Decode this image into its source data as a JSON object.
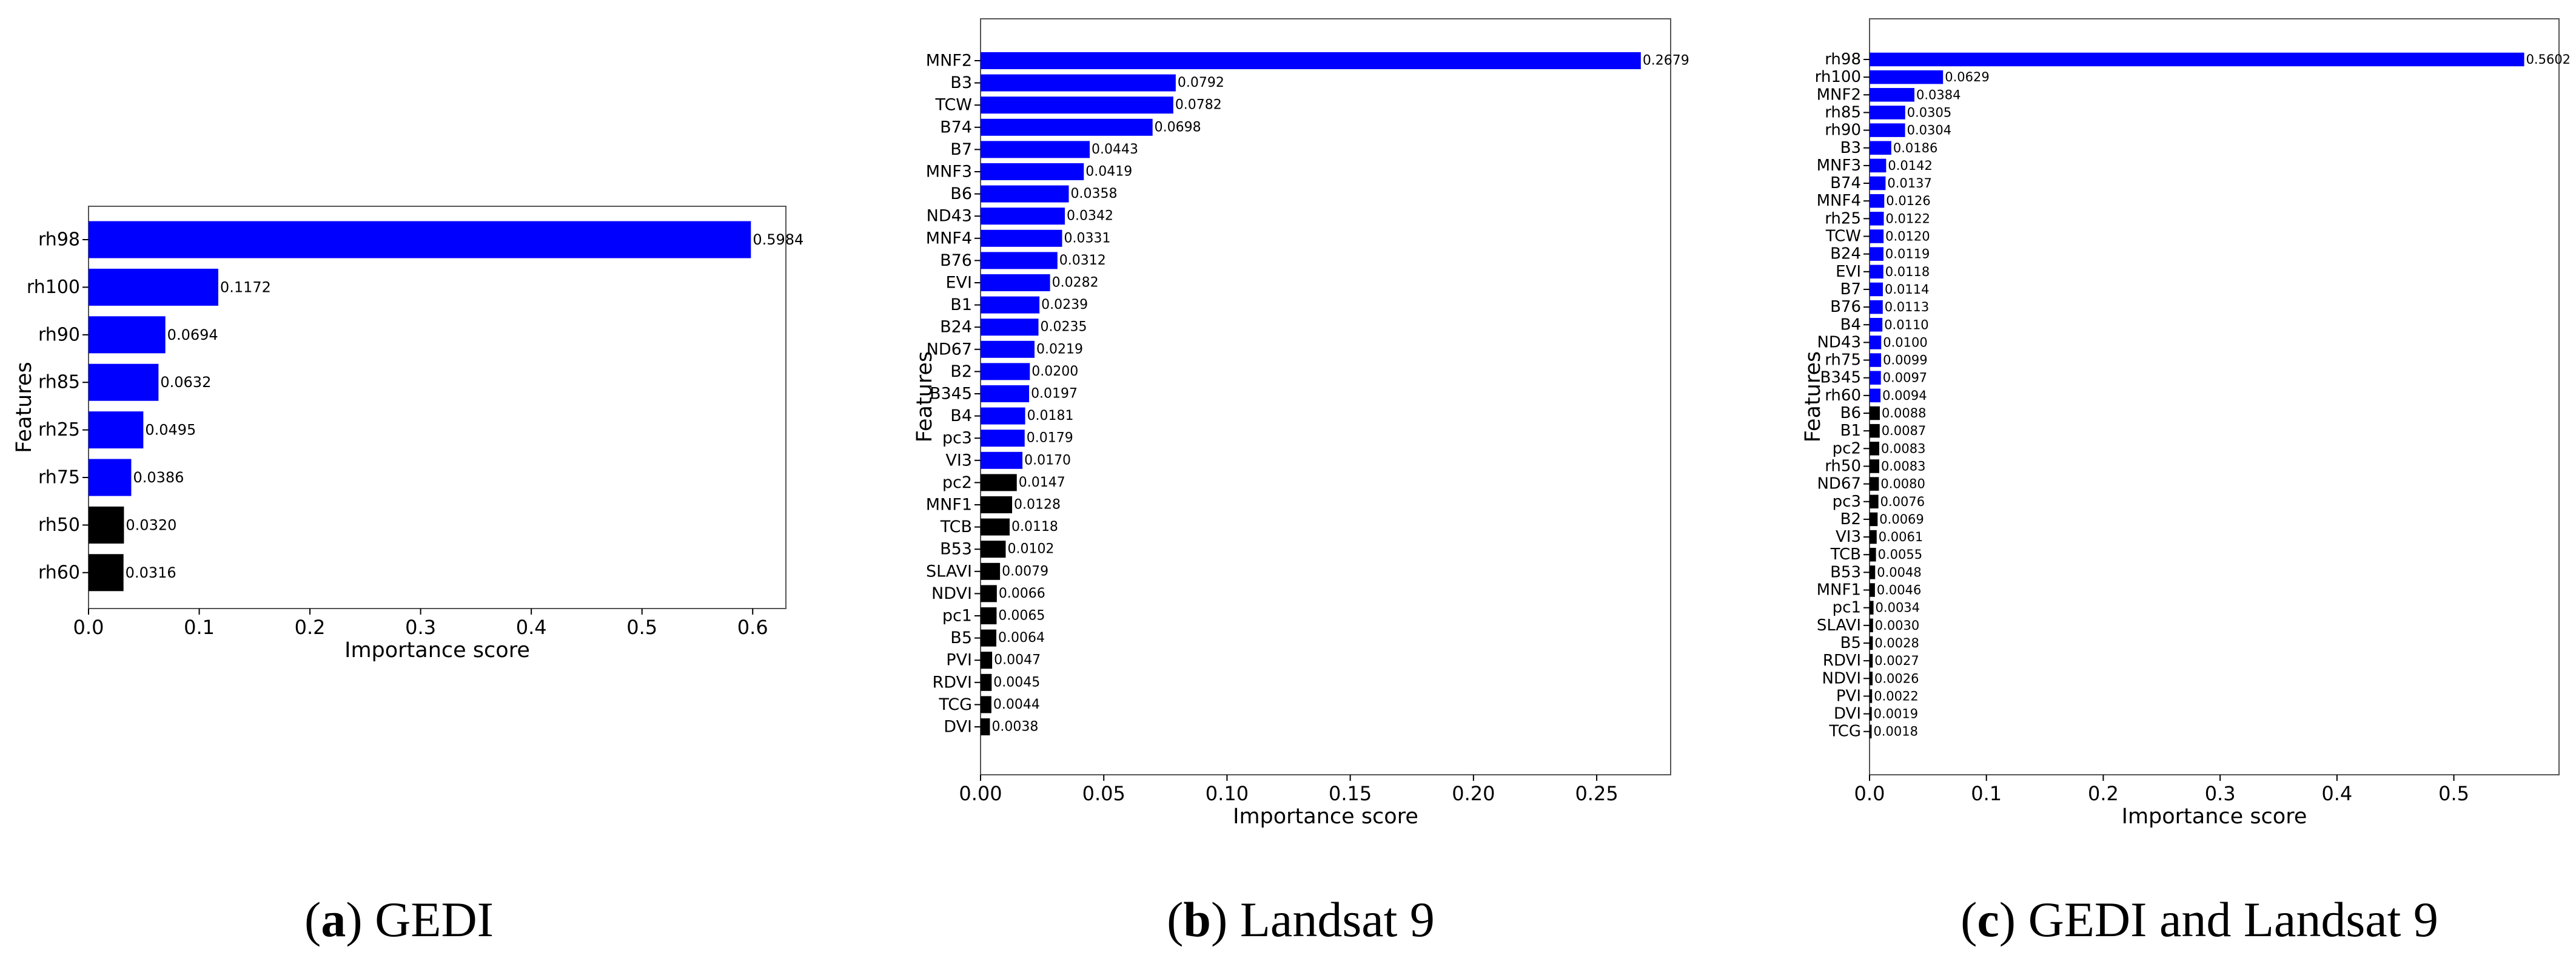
{
  "chart_data": [
    {
      "type": "bar",
      "orientation": "horizontal",
      "caption_letter": "a",
      "caption_text": "GEDI",
      "xlabel": "Importance score",
      "ylabel": "Features",
      "xlim": [
        0,
        0.63
      ],
      "xticks": [
        0.0,
        0.1,
        0.2,
        0.3,
        0.4,
        0.5,
        0.6
      ],
      "xtick_labels": [
        "0.0",
        "0.1",
        "0.2",
        "0.3",
        "0.4",
        "0.5",
        "0.6"
      ],
      "categories": [
        "rh98",
        "rh100",
        "rh90",
        "rh85",
        "rh25",
        "rh75",
        "rh50",
        "rh60"
      ],
      "values": [
        0.5984,
        0.1172,
        0.0694,
        0.0632,
        0.0495,
        0.0386,
        0.032,
        0.0316
      ],
      "value_labels": [
        "0.5984",
        "0.1172",
        "0.0694",
        "0.0632",
        "0.0495",
        "0.0386",
        "0.0320",
        "0.0316"
      ],
      "selected_count": 6,
      "colors": {
        "selected": "#0000ff",
        "other": "#000000"
      },
      "grid": false
    },
    {
      "type": "bar",
      "orientation": "horizontal",
      "caption_letter": "b",
      "caption_text": "Landsat 9",
      "xlabel": "Importance score",
      "ylabel": "Features",
      "xlim": [
        0,
        0.28
      ],
      "xticks": [
        0.0,
        0.05,
        0.1,
        0.15,
        0.2,
        0.25
      ],
      "xtick_labels": [
        "0.00",
        "0.05",
        "0.10",
        "0.15",
        "0.20",
        "0.25"
      ],
      "categories": [
        "MNF2",
        "B3",
        "TCW",
        "B74",
        "B7",
        "MNF3",
        "B6",
        "ND43",
        "MNF4",
        "B76",
        "EVI",
        "B1",
        "B24",
        "ND67",
        "B2",
        "B345",
        "B4",
        "pc3",
        "VI3",
        "pc2",
        "MNF1",
        "TCB",
        "B53",
        "SLAVI",
        "NDVI",
        "pc1",
        "B5",
        "PVI",
        "RDVI",
        "TCG",
        "DVI"
      ],
      "values": [
        0.2679,
        0.0792,
        0.0782,
        0.0698,
        0.0443,
        0.0419,
        0.0358,
        0.0342,
        0.0331,
        0.0312,
        0.0282,
        0.0239,
        0.0235,
        0.0219,
        0.02,
        0.0197,
        0.0181,
        0.0179,
        0.017,
        0.0147,
        0.0128,
        0.0118,
        0.0102,
        0.0079,
        0.0066,
        0.0065,
        0.0064,
        0.0047,
        0.0045,
        0.0044,
        0.0038
      ],
      "value_labels": [
        "0.2679",
        "0.0792",
        "0.0782",
        "0.0698",
        "0.0443",
        "0.0419",
        "0.0358",
        "0.0342",
        "0.0331",
        "0.0312",
        "0.0282",
        "0.0239",
        "0.0235",
        "0.0219",
        "0.0200",
        "0.0197",
        "0.0181",
        "0.0179",
        "0.0170",
        "0.0147",
        "0.0128",
        "0.0118",
        "0.0102",
        "0.0079",
        "0.0066",
        "0.0065",
        "0.0064",
        "0.0047",
        "0.0045",
        "0.0044",
        "0.0038"
      ],
      "selected_count": 19,
      "colors": {
        "selected": "#0000ff",
        "other": "#000000"
      },
      "grid": false
    },
    {
      "type": "bar",
      "orientation": "horizontal",
      "caption_letter": "c",
      "caption_text": "GEDI and Landsat 9",
      "xlabel": "Importance score",
      "ylabel": "Features",
      "xlim": [
        0,
        0.59
      ],
      "xticks": [
        0.0,
        0.1,
        0.2,
        0.3,
        0.4,
        0.5
      ],
      "xtick_labels": [
        "0.0",
        "0.1",
        "0.2",
        "0.3",
        "0.4",
        "0.5"
      ],
      "categories": [
        "rh98",
        "rh100",
        "MNF2",
        "rh85",
        "rh90",
        "B3",
        "MNF3",
        "B74",
        "MNF4",
        "rh25",
        "TCW",
        "B24",
        "EVI",
        "B7",
        "B76",
        "B4",
        "ND43",
        "rh75",
        "B345",
        "rh60",
        "B6",
        "B1",
        "pc2",
        "rh50",
        "ND67",
        "pc3",
        "B2",
        "VI3",
        "TCB",
        "B53",
        "MNF1",
        "pc1",
        "SLAVI",
        "B5",
        "RDVI",
        "NDVI",
        "PVI",
        "DVI",
        "TCG"
      ],
      "values": [
        0.5602,
        0.0629,
        0.0384,
        0.0305,
        0.0304,
        0.0186,
        0.0142,
        0.0137,
        0.0126,
        0.0122,
        0.012,
        0.0119,
        0.0118,
        0.0114,
        0.0113,
        0.011,
        0.01,
        0.0099,
        0.0097,
        0.0094,
        0.0088,
        0.0087,
        0.0083,
        0.0083,
        0.008,
        0.0076,
        0.0069,
        0.0061,
        0.0055,
        0.0048,
        0.0046,
        0.0034,
        0.003,
        0.0028,
        0.0027,
        0.0026,
        0.0022,
        0.0019,
        0.0018
      ],
      "value_labels": [
        "0.5602",
        "0.0629",
        "0.0384",
        "0.0305",
        "0.0304",
        "0.0186",
        "0.0142",
        "0.0137",
        "0.0126",
        "0.0122",
        "0.0120",
        "0.0119",
        "0.0118",
        "0.0114",
        "0.0113",
        "0.0110",
        "0.0100",
        "0.0099",
        "0.0097",
        "0.0094",
        "0.0088",
        "0.0087",
        "0.0083",
        "0.0083",
        "0.0080",
        "0.0076",
        "0.0069",
        "0.0061",
        "0.0055",
        "0.0048",
        "0.0046",
        "0.0034",
        "0.0030",
        "0.0028",
        "0.0027",
        "0.0026",
        "0.0022",
        "0.0019",
        "0.0018"
      ],
      "selected_count": 20,
      "colors": {
        "selected": "#0000ff",
        "other": "#000000"
      },
      "grid": false
    }
  ]
}
